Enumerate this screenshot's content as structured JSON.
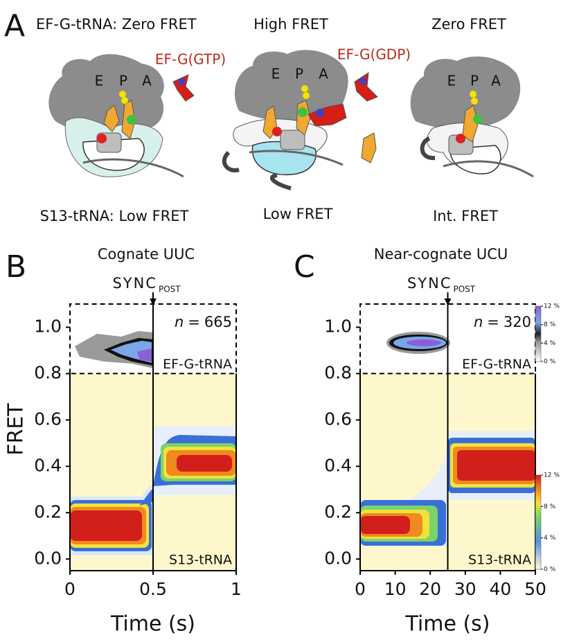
{
  "panel_a": {
    "label": "A",
    "site_labels": [
      "E",
      "P",
      "A"
    ],
    "states": [
      {
        "top": "EF-G-tRNA: Zero  FRET",
        "bottom": "S13-tRNA: Low  FRET",
        "factor": "EF-G(GTP)"
      },
      {
        "top": "High FRET",
        "bottom": "Low FRET",
        "factor": "EF-G(GDP)"
      },
      {
        "top": "Zero FRET",
        "bottom": "Int. FRET"
      }
    ]
  },
  "y_label": "FRET",
  "panels": [
    {
      "label": "B",
      "title": "Cognate UUC",
      "sync": "SYNC",
      "sync_sub": "POST",
      "sync_time": 0.5,
      "n_symbol": "n",
      "n_equals": "=",
      "n": 665,
      "upper_label": "EF-G-tRNA",
      "lower_label": "S13-tRNA",
      "x_label": "Time (s)",
      "xlim": [
        0,
        1
      ],
      "xticks": [
        0,
        0.5,
        1
      ],
      "ylim": [
        -0.05,
        1.1
      ],
      "split": 0.8,
      "yticks": [
        {
          "value": 0,
          "label": "0.0"
        },
        0.2,
        0.4,
        0.6,
        0.8,
        {
          "value": 1,
          "label": "1.0"
        }
      ]
    },
    {
      "label": "C",
      "title": "Near-cognate UCU",
      "sync": "SYNC",
      "sync_sub": "POST",
      "sync_time": 25,
      "n_symbol": "n",
      "n_equals": "=",
      "n": 320,
      "upper_label": "EF-G-tRNA",
      "lower_label": "S13-tRNA",
      "x_label": "Time (s)",
      "xlim": [
        0,
        50
      ],
      "xticks": [
        0,
        10,
        20,
        30,
        40,
        50
      ],
      "ylim": [
        -0.05,
        1.1
      ],
      "split": 0.8,
      "yticks": [
        {
          "value": 0,
          "label": "0.0"
        },
        0.2,
        0.4,
        0.6,
        0.8,
        {
          "value": 1,
          "label": "1.0"
        }
      ],
      "colorbars": [
        {
          "clim": [
            0,
            12
          ],
          "ticks": [
            {
              "value": 12,
              "label": "12 %"
            },
            {
              "value": 8,
              "label": "8 %"
            },
            {
              "value": 4,
              "label": "4 %"
            },
            {
              "value": 0,
              "label": "0 %"
            }
          ]
        },
        {
          "clim": [
            0,
            12
          ],
          "ticks": [
            {
              "value": 12,
              "label": "12 %"
            },
            {
              "value": 8,
              "label": "8 %"
            },
            {
              "value": 4,
              "label": "4 %"
            },
            {
              "value": 0,
              "label": "0 %"
            }
          ]
        }
      ]
    }
  ]
}
